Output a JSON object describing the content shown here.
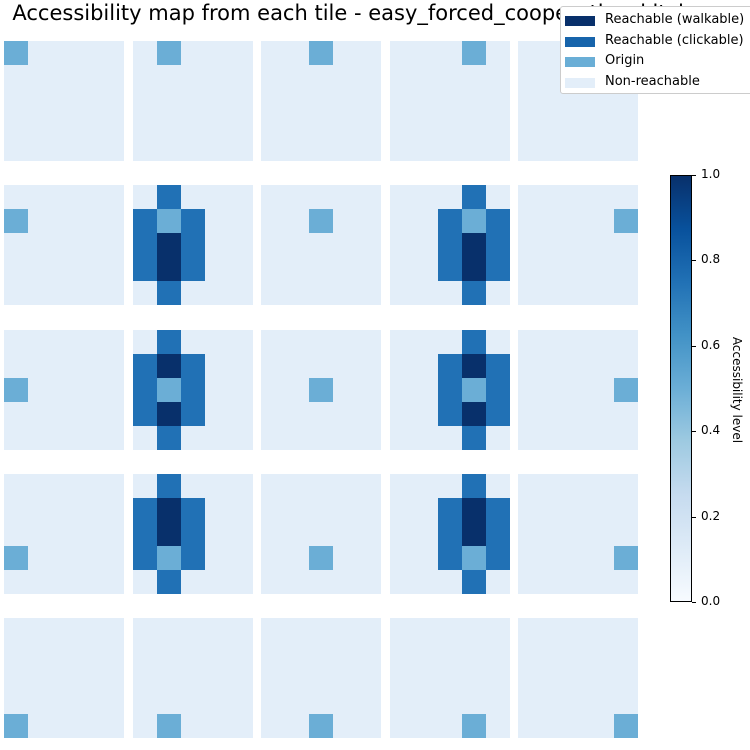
{
  "title": "Accessibility map from each tile - easy_forced_cooperation_kitchen",
  "chart_data": {
    "type": "heatmap",
    "description_grid": "5x5 small multiples; each panel is a 5x5 accessibility map from the origin tile",
    "colormap": "Blues",
    "value_range": [
      0,
      1
    ],
    "levels": {
      "non_reachable": 0.1,
      "origin": 0.5,
      "clickable": 0.75,
      "walkable": 1.0
    },
    "panels": [
      [
        [
          0.5,
          0.1,
          0.1,
          0.1,
          0.1
        ],
        [
          0.1,
          0.1,
          0.1,
          0.1,
          0.1
        ],
        [
          0.1,
          0.1,
          0.1,
          0.1,
          0.1
        ],
        [
          0.1,
          0.1,
          0.1,
          0.1,
          0.1
        ],
        [
          0.1,
          0.1,
          0.1,
          0.1,
          0.1
        ]
      ],
      [
        [
          0.1,
          0.5,
          0.1,
          0.1,
          0.1
        ],
        [
          0.1,
          0.1,
          0.1,
          0.1,
          0.1
        ],
        [
          0.1,
          0.1,
          0.1,
          0.1,
          0.1
        ],
        [
          0.1,
          0.1,
          0.1,
          0.1,
          0.1
        ],
        [
          0.1,
          0.1,
          0.1,
          0.1,
          0.1
        ]
      ],
      [
        [
          0.1,
          0.1,
          0.5,
          0.1,
          0.1
        ],
        [
          0.1,
          0.1,
          0.1,
          0.1,
          0.1
        ],
        [
          0.1,
          0.1,
          0.1,
          0.1,
          0.1
        ],
        [
          0.1,
          0.1,
          0.1,
          0.1,
          0.1
        ],
        [
          0.1,
          0.1,
          0.1,
          0.1,
          0.1
        ]
      ],
      [
        [
          0.1,
          0.1,
          0.1,
          0.5,
          0.1
        ],
        [
          0.1,
          0.1,
          0.1,
          0.1,
          0.1
        ],
        [
          0.1,
          0.1,
          0.1,
          0.1,
          0.1
        ],
        [
          0.1,
          0.1,
          0.1,
          0.1,
          0.1
        ],
        [
          0.1,
          0.1,
          0.1,
          0.1,
          0.1
        ]
      ],
      [
        [
          0.1,
          0.1,
          0.1,
          0.1,
          0.5
        ],
        [
          0.1,
          0.1,
          0.1,
          0.1,
          0.1
        ],
        [
          0.1,
          0.1,
          0.1,
          0.1,
          0.1
        ],
        [
          0.1,
          0.1,
          0.1,
          0.1,
          0.1
        ],
        [
          0.1,
          0.1,
          0.1,
          0.1,
          0.1
        ]
      ],
      [
        [
          0.1,
          0.1,
          0.1,
          0.1,
          0.1
        ],
        [
          0.5,
          0.1,
          0.1,
          0.1,
          0.1
        ],
        [
          0.1,
          0.1,
          0.1,
          0.1,
          0.1
        ],
        [
          0.1,
          0.1,
          0.1,
          0.1,
          0.1
        ],
        [
          0.1,
          0.1,
          0.1,
          0.1,
          0.1
        ]
      ],
      [
        [
          0.1,
          0.75,
          0.1,
          0.1,
          0.1
        ],
        [
          0.75,
          0.5,
          0.75,
          0.1,
          0.1
        ],
        [
          0.75,
          1.0,
          0.75,
          0.1,
          0.1
        ],
        [
          0.75,
          1.0,
          0.75,
          0.1,
          0.1
        ],
        [
          0.1,
          0.75,
          0.1,
          0.1,
          0.1
        ]
      ],
      [
        [
          0.1,
          0.1,
          0.1,
          0.1,
          0.1
        ],
        [
          0.1,
          0.1,
          0.5,
          0.1,
          0.1
        ],
        [
          0.1,
          0.1,
          0.1,
          0.1,
          0.1
        ],
        [
          0.1,
          0.1,
          0.1,
          0.1,
          0.1
        ],
        [
          0.1,
          0.1,
          0.1,
          0.1,
          0.1
        ]
      ],
      [
        [
          0.1,
          0.1,
          0.1,
          0.75,
          0.1
        ],
        [
          0.1,
          0.1,
          0.75,
          0.5,
          0.75
        ],
        [
          0.1,
          0.1,
          0.75,
          1.0,
          0.75
        ],
        [
          0.1,
          0.1,
          0.75,
          1.0,
          0.75
        ],
        [
          0.1,
          0.1,
          0.1,
          0.75,
          0.1
        ]
      ],
      [
        [
          0.1,
          0.1,
          0.1,
          0.1,
          0.1
        ],
        [
          0.1,
          0.1,
          0.1,
          0.1,
          0.5
        ],
        [
          0.1,
          0.1,
          0.1,
          0.1,
          0.1
        ],
        [
          0.1,
          0.1,
          0.1,
          0.1,
          0.1
        ],
        [
          0.1,
          0.1,
          0.1,
          0.1,
          0.1
        ]
      ],
      [
        [
          0.1,
          0.1,
          0.1,
          0.1,
          0.1
        ],
        [
          0.1,
          0.1,
          0.1,
          0.1,
          0.1
        ],
        [
          0.5,
          0.1,
          0.1,
          0.1,
          0.1
        ],
        [
          0.1,
          0.1,
          0.1,
          0.1,
          0.1
        ],
        [
          0.1,
          0.1,
          0.1,
          0.1,
          0.1
        ]
      ],
      [
        [
          0.1,
          0.75,
          0.1,
          0.1,
          0.1
        ],
        [
          0.75,
          1.0,
          0.75,
          0.1,
          0.1
        ],
        [
          0.75,
          0.5,
          0.75,
          0.1,
          0.1
        ],
        [
          0.75,
          1.0,
          0.75,
          0.1,
          0.1
        ],
        [
          0.1,
          0.75,
          0.1,
          0.1,
          0.1
        ]
      ],
      [
        [
          0.1,
          0.1,
          0.1,
          0.1,
          0.1
        ],
        [
          0.1,
          0.1,
          0.1,
          0.1,
          0.1
        ],
        [
          0.1,
          0.1,
          0.5,
          0.1,
          0.1
        ],
        [
          0.1,
          0.1,
          0.1,
          0.1,
          0.1
        ],
        [
          0.1,
          0.1,
          0.1,
          0.1,
          0.1
        ]
      ],
      [
        [
          0.1,
          0.1,
          0.1,
          0.75,
          0.1
        ],
        [
          0.1,
          0.1,
          0.75,
          1.0,
          0.75
        ],
        [
          0.1,
          0.1,
          0.75,
          0.5,
          0.75
        ],
        [
          0.1,
          0.1,
          0.75,
          1.0,
          0.75
        ],
        [
          0.1,
          0.1,
          0.1,
          0.75,
          0.1
        ]
      ],
      [
        [
          0.1,
          0.1,
          0.1,
          0.1,
          0.1
        ],
        [
          0.1,
          0.1,
          0.1,
          0.1,
          0.1
        ],
        [
          0.1,
          0.1,
          0.1,
          0.1,
          0.5
        ],
        [
          0.1,
          0.1,
          0.1,
          0.1,
          0.1
        ],
        [
          0.1,
          0.1,
          0.1,
          0.1,
          0.1
        ]
      ],
      [
        [
          0.1,
          0.1,
          0.1,
          0.1,
          0.1
        ],
        [
          0.1,
          0.1,
          0.1,
          0.1,
          0.1
        ],
        [
          0.1,
          0.1,
          0.1,
          0.1,
          0.1
        ],
        [
          0.5,
          0.1,
          0.1,
          0.1,
          0.1
        ],
        [
          0.1,
          0.1,
          0.1,
          0.1,
          0.1
        ]
      ],
      [
        [
          0.1,
          0.75,
          0.1,
          0.1,
          0.1
        ],
        [
          0.75,
          1.0,
          0.75,
          0.1,
          0.1
        ],
        [
          0.75,
          1.0,
          0.75,
          0.1,
          0.1
        ],
        [
          0.75,
          0.5,
          0.75,
          0.1,
          0.1
        ],
        [
          0.1,
          0.75,
          0.1,
          0.1,
          0.1
        ]
      ],
      [
        [
          0.1,
          0.1,
          0.1,
          0.1,
          0.1
        ],
        [
          0.1,
          0.1,
          0.1,
          0.1,
          0.1
        ],
        [
          0.1,
          0.1,
          0.1,
          0.1,
          0.1
        ],
        [
          0.1,
          0.1,
          0.5,
          0.1,
          0.1
        ],
        [
          0.1,
          0.1,
          0.1,
          0.1,
          0.1
        ]
      ],
      [
        [
          0.1,
          0.1,
          0.1,
          0.75,
          0.1
        ],
        [
          0.1,
          0.1,
          0.75,
          1.0,
          0.75
        ],
        [
          0.1,
          0.1,
          0.75,
          1.0,
          0.75
        ],
        [
          0.1,
          0.1,
          0.75,
          0.5,
          0.75
        ],
        [
          0.1,
          0.1,
          0.1,
          0.75,
          0.1
        ]
      ],
      [
        [
          0.1,
          0.1,
          0.1,
          0.1,
          0.1
        ],
        [
          0.1,
          0.1,
          0.1,
          0.1,
          0.1
        ],
        [
          0.1,
          0.1,
          0.1,
          0.1,
          0.1
        ],
        [
          0.1,
          0.1,
          0.1,
          0.1,
          0.5
        ],
        [
          0.1,
          0.1,
          0.1,
          0.1,
          0.1
        ]
      ],
      [
        [
          0.1,
          0.1,
          0.1,
          0.1,
          0.1
        ],
        [
          0.1,
          0.1,
          0.1,
          0.1,
          0.1
        ],
        [
          0.1,
          0.1,
          0.1,
          0.1,
          0.1
        ],
        [
          0.1,
          0.1,
          0.1,
          0.1,
          0.1
        ],
        [
          0.5,
          0.1,
          0.1,
          0.1,
          0.1
        ]
      ],
      [
        [
          0.1,
          0.1,
          0.1,
          0.1,
          0.1
        ],
        [
          0.1,
          0.1,
          0.1,
          0.1,
          0.1
        ],
        [
          0.1,
          0.1,
          0.1,
          0.1,
          0.1
        ],
        [
          0.1,
          0.1,
          0.1,
          0.1,
          0.1
        ],
        [
          0.1,
          0.5,
          0.1,
          0.1,
          0.1
        ]
      ],
      [
        [
          0.1,
          0.1,
          0.1,
          0.1,
          0.1
        ],
        [
          0.1,
          0.1,
          0.1,
          0.1,
          0.1
        ],
        [
          0.1,
          0.1,
          0.1,
          0.1,
          0.1
        ],
        [
          0.1,
          0.1,
          0.1,
          0.1,
          0.1
        ],
        [
          0.1,
          0.1,
          0.5,
          0.1,
          0.1
        ]
      ],
      [
        [
          0.1,
          0.1,
          0.1,
          0.1,
          0.1
        ],
        [
          0.1,
          0.1,
          0.1,
          0.1,
          0.1
        ],
        [
          0.1,
          0.1,
          0.1,
          0.1,
          0.1
        ],
        [
          0.1,
          0.1,
          0.1,
          0.1,
          0.1
        ],
        [
          0.1,
          0.1,
          0.1,
          0.5,
          0.1
        ]
      ],
      [
        [
          0.1,
          0.1,
          0.1,
          0.1,
          0.1
        ],
        [
          0.1,
          0.1,
          0.1,
          0.1,
          0.1
        ],
        [
          0.1,
          0.1,
          0.1,
          0.1,
          0.1
        ],
        [
          0.1,
          0.1,
          0.1,
          0.1,
          0.1
        ],
        [
          0.1,
          0.1,
          0.1,
          0.1,
          0.5
        ]
      ]
    ],
    "legend": {
      "placement": "top-right",
      "items": [
        {
          "label": "Reachable (walkable)",
          "color": "#08306b"
        },
        {
          "label": "Reachable (clickable)",
          "color": "#1764ab"
        },
        {
          "label": "Origin",
          "color": "#6aaed6"
        },
        {
          "label": "Non-reachable",
          "color": "#e3eef9"
        }
      ]
    },
    "colorbar": {
      "label": "Accessibility level",
      "ticks": [
        0.0,
        0.2,
        0.4,
        0.6,
        0.8,
        1.0
      ],
      "tick_labels": [
        "0.0",
        "0.2",
        "0.4",
        "0.6",
        "0.8",
        "1.0"
      ]
    }
  }
}
